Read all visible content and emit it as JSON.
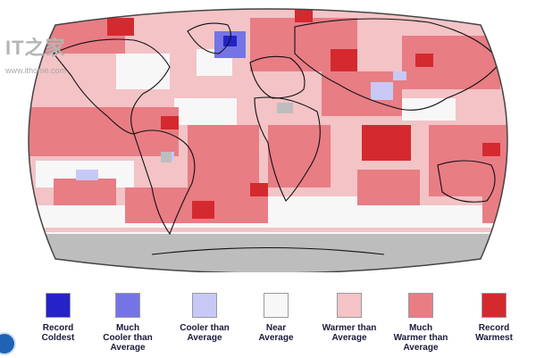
{
  "watermark": {
    "logo": "IT之家",
    "url": "www.ithome.com"
  },
  "legend": {
    "items": [
      {
        "label": "Record\nColdest",
        "color": "#2323c8"
      },
      {
        "label": "Much\nCooler than\nAverage",
        "color": "#7474e6"
      },
      {
        "label": "Cooler than\nAverage",
        "color": "#c8c8f6"
      },
      {
        "label": "Near\nAverage",
        "color": "#f7f7f7"
      },
      {
        "label": "Warmer than\nAverage",
        "color": "#f3c3c6"
      },
      {
        "label": "Much\nWarmer than\nAverage",
        "color": "#e87d84"
      },
      {
        "label": "Record\nWarmest",
        "color": "#d42a2f"
      }
    ]
  },
  "map": {
    "no_data_color": "#bdbdbd",
    "ocean_bg": "#f7f7f7"
  }
}
